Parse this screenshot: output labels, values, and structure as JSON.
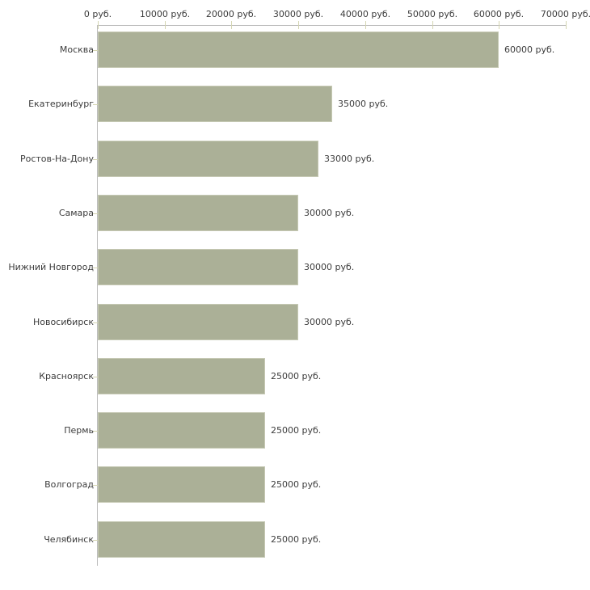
{
  "chart_data": {
    "type": "bar",
    "orientation": "horizontal",
    "title": "",
    "categories": [
      "Москва",
      "Екатеринбург",
      "Ростов-На-Дону",
      "Самара",
      "Нижний Новгород",
      "Новосибирск",
      "Красноярск",
      "Пермь",
      "Волгоград",
      "Челябинск"
    ],
    "values": [
      60000,
      35000,
      33000,
      30000,
      30000,
      30000,
      25000,
      25000,
      25000,
      25000
    ],
    "value_labels": [
      "60000 руб.",
      "35000 руб.",
      "33000 руб.",
      "30000 руб.",
      "30000 руб.",
      "30000 руб.",
      "25000 руб.",
      "25000 руб.",
      "25000 руб.",
      "25000 руб."
    ],
    "x_ticks": [
      0,
      10000,
      20000,
      30000,
      40000,
      50000,
      60000,
      70000
    ],
    "x_tick_labels": [
      "0 руб.",
      "10000 руб.",
      "20000 руб.",
      "30000 руб.",
      "40000 руб.",
      "50000 руб.",
      "60000 руб.",
      "70000 руб."
    ],
    "xlim": [
      0,
      70000
    ],
    "unit": "руб.",
    "grid": false,
    "legend": "none",
    "colors": {
      "bar_fill": "#abb097",
      "bar_border": "#c6c9b4",
      "axis_line": "#bdbdbd",
      "tick_mark": "#d4d5b2",
      "text": "#3c3c3c",
      "background": "#ffffff"
    }
  }
}
